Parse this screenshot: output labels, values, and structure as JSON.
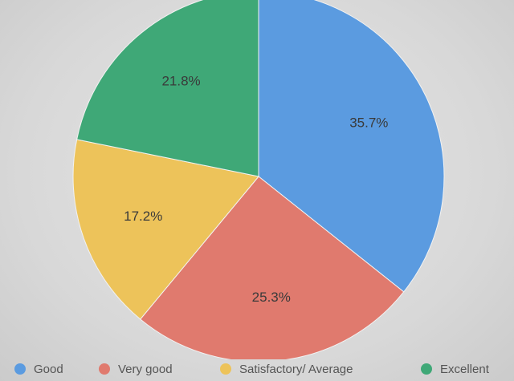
{
  "chart_data": {
    "type": "pie",
    "title": "",
    "categories": [
      "Good",
      "Very good",
      "Satisfactory/ Average",
      "Excellent"
    ],
    "values": [
      35.7,
      25.3,
      17.2,
      21.8
    ],
    "data_labels": [
      "35.7%",
      "25.3%",
      "17.2%",
      "21.8%"
    ],
    "colors": [
      "#5b9be0",
      "#e07a6e",
      "#edc35a",
      "#3fa877"
    ],
    "start_angle": "12 o'clock",
    "direction": "clockwise",
    "legend_position": "bottom"
  }
}
